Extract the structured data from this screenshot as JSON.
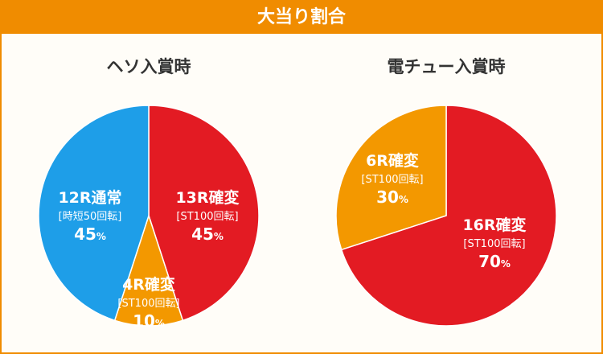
{
  "header": {
    "title": "大当り割合"
  },
  "colors": {
    "blue": "#1e9ee8",
    "red": "#e31b23",
    "orange": "#f39800",
    "accent": "#f08c00"
  },
  "chart_data": [
    {
      "type": "pie",
      "title": "ヘソ入賞時",
      "slices": [
        {
          "label": "13R確変",
          "sublabel": "[ST100回転]",
          "value": 45,
          "display": "45",
          "unit": "%",
          "color": "#e31b23"
        },
        {
          "label": "4R確変",
          "sublabel": "[ST100回転]",
          "value": 10,
          "display": "10",
          "unit": "%",
          "color": "#f39800"
        },
        {
          "label": "12R通常",
          "sublabel": "[時短50回転]",
          "value": 45,
          "display": "45",
          "unit": "%",
          "color": "#1e9ee8"
        }
      ]
    },
    {
      "type": "pie",
      "title": "電チュー入賞時",
      "slices": [
        {
          "label": "16R確変",
          "sublabel": "[ST100回転]",
          "value": 70,
          "display": "70",
          "unit": "%",
          "color": "#e31b23"
        },
        {
          "label": "6R確変",
          "sublabel": "[ST100回転]",
          "value": 30,
          "display": "30",
          "unit": "%",
          "color": "#f39800"
        }
      ]
    }
  ]
}
